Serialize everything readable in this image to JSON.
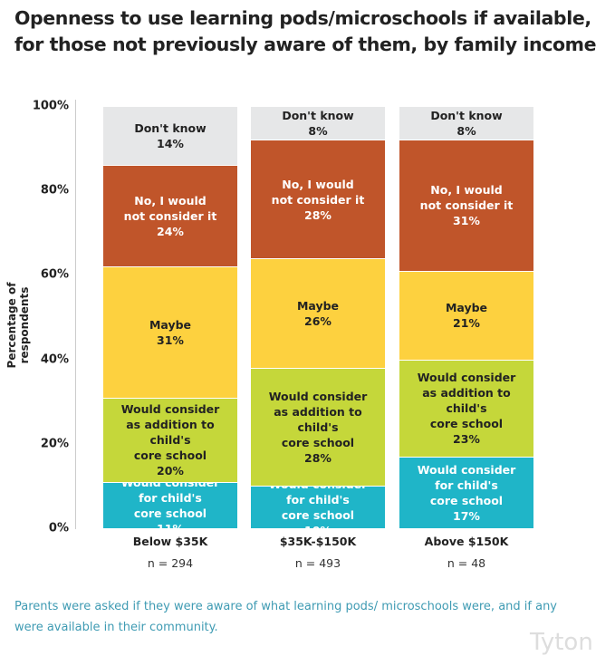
{
  "title": "Openness to use learning pods/microschools if available, for those not previously aware of them, by family income",
  "note": "Parents were asked if they were aware of what learning pods/ microschools were, and if any were available in their community.",
  "logo": "Tyton",
  "chart_data": {
    "type": "bar",
    "stacked": true,
    "ylabel": "Percentage of respondents",
    "ylim": [
      0,
      100
    ],
    "yticks": [
      "0%",
      "20%",
      "40%",
      "60%",
      "80%",
      "100%"
    ],
    "categories": [
      "Below $35K",
      "$35K-$150K",
      "Above $150K"
    ],
    "sample_sizes": [
      "n = 294",
      "n = 493",
      "n = 48"
    ],
    "series": [
      {
        "name": "Would consider\nfor child's\ncore school",
        "color": "#1fb5c8",
        "text_color": "#ffffff",
        "values": [
          11,
          10,
          17
        ]
      },
      {
        "name": "Would consider\nas addition to\nchild's\ncore school",
        "color": "#c5d73a",
        "text_color": "#222222",
        "values": [
          20,
          28,
          23
        ]
      },
      {
        "name": "Maybe",
        "color": "#fdd13f",
        "text_color": "#222222",
        "values": [
          31,
          26,
          21
        ]
      },
      {
        "name": "No, I would\nnot consider it",
        "color": "#c0552a",
        "text_color": "#ffffff",
        "values": [
          24,
          28,
          31
        ]
      },
      {
        "name": "Don't know",
        "color": "#e6e7e8",
        "text_color": "#222222",
        "values": [
          14,
          8,
          8
        ]
      }
    ]
  }
}
